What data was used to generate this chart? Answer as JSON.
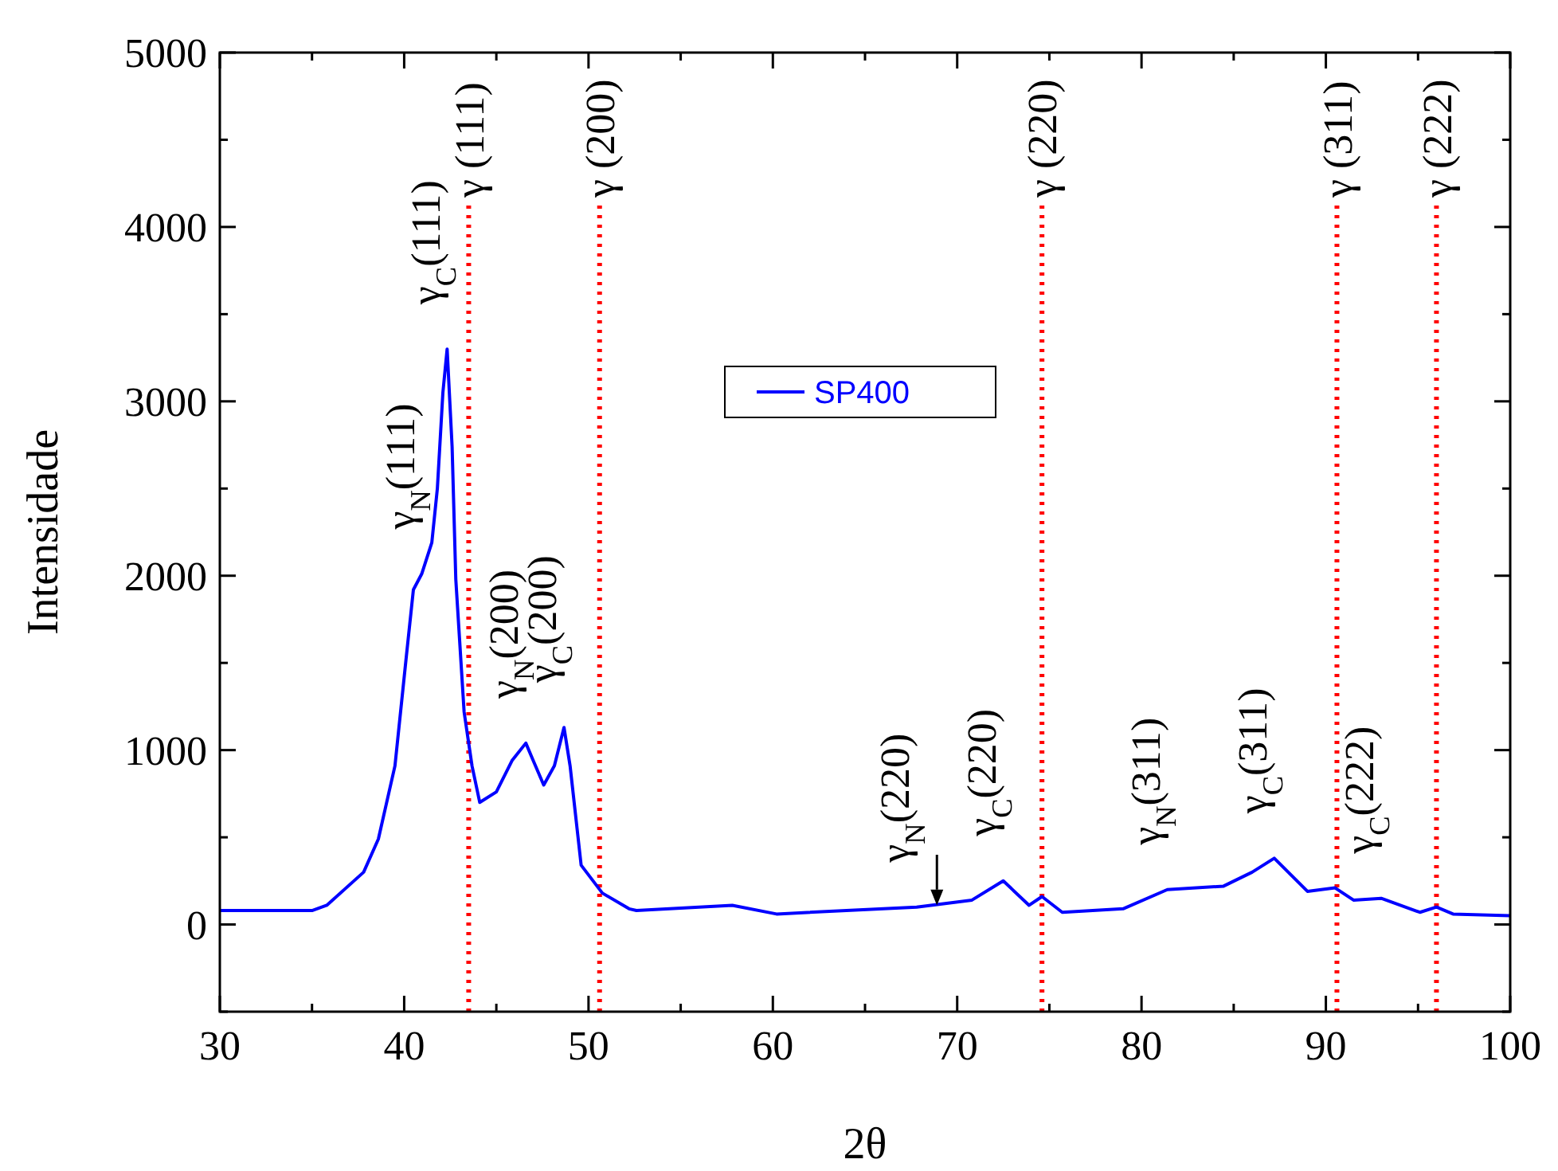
{
  "chart_data": {
    "type": "line",
    "xlabel": "2θ",
    "ylabel": "Intensidade",
    "xlim": [
      30,
      100
    ],
    "xticks": [
      30,
      {
        "value": 35,
        "label": null
      },
      40,
      {
        "value": 45,
        "label": null
      },
      50,
      {
        "value": 55,
        "label": null
      },
      60,
      {
        "value": 65,
        "label": null
      },
      70,
      {
        "value": 75,
        "label": null
      },
      80,
      {
        "value": 85,
        "label": null
      },
      90,
      {
        "value": 95,
        "label": null
      },
      100
    ],
    "ylim": [
      -500,
      5000
    ],
    "yticks": [
      {
        "value": -500,
        "label": null
      },
      0,
      {
        "value": 500,
        "label": null
      },
      1000,
      {
        "value": 1500,
        "label": null
      },
      2000,
      {
        "value": 2500,
        "label": null
      },
      3000,
      {
        "value": 3500,
        "label": null
      },
      4000,
      {
        "value": 4500,
        "label": null
      },
      5000
    ],
    "grid": false,
    "legend": "top",
    "marker": "none",
    "line_style": "solid",
    "series": [
      {
        "name": "SP400",
        "color": "#0000ff",
        "x": [
          30,
          35,
          35.8,
          37.8,
          38.6,
          39.5,
          40.1,
          40.5,
          40.95,
          41.5,
          41.8,
          42.1,
          42.33,
          42.6,
          42.8,
          43.25,
          43.68,
          44.1,
          45.0,
          45.85,
          46.6,
          47.0,
          47.57,
          48.15,
          48.67,
          49.0,
          49.6,
          50.75,
          52.2,
          52.6,
          57.8,
          60.2,
          67.8,
          70.8,
          72.5,
          73.9,
          74.6,
          75.7,
          79.0,
          81.4,
          84.45,
          86.0,
          87.2,
          89.0,
          90.5,
          91.5,
          93.0,
          95.1,
          96.0,
          96.9,
          100
        ],
        "values": [
          80,
          80,
          110,
          300,
          490,
          910,
          1520,
          1920,
          2010,
          2190,
          2500,
          3050,
          3300,
          2740,
          1980,
          1220,
          910,
          700,
          760,
          940,
          1040,
          940,
          800,
          910,
          1130,
          910,
          340,
          180,
          90,
          80,
          110,
          60,
          100,
          140,
          250,
          110,
          160,
          70,
          90,
          200,
          220,
          300,
          380,
          190,
          210,
          140,
          150,
          70,
          100,
          60,
          50
        ]
      }
    ],
    "ref_lines": [
      {
        "axis": "x",
        "value": 43.5,
        "label": "γ (111)",
        "color": "#ff0000",
        "line_style": "dotted"
      },
      {
        "axis": "x",
        "value": 50.6,
        "label": "γ (200)",
        "color": "#ff0000",
        "line_style": "dotted"
      },
      {
        "axis": "x",
        "value": 74.6,
        "label": "γ (220)",
        "color": "#ff0000",
        "line_style": "dotted"
      },
      {
        "axis": "x",
        "value": 90.6,
        "label": "γ (311)",
        "color": "#ff0000",
        "line_style": "dotted"
      },
      {
        "axis": "x",
        "value": 96.0,
        "label": "γ (222)",
        "color": "#ff0000",
        "line_style": "dotted"
      }
    ],
    "annotations": [
      {
        "text": "γ$_{N}$(111)",
        "x": 40.95,
        "y": 2010
      },
      {
        "text": "γ$_{C}$(111)",
        "x": 42.33,
        "y": 3300
      },
      {
        "text": "γ$_{N}$(200)",
        "x": 46.6,
        "y": 1040
      },
      {
        "text": "γ$_{C}$(200)",
        "x": 48.67,
        "y": 1130
      },
      {
        "text": "γ$_{N}$(220)",
        "x": 67.8,
        "y": 100
      },
      {
        "text": "γ$_{C}$(220)",
        "x": 72.5,
        "y": 250
      },
      {
        "text": "γ$_{N}$(311)",
        "x": 81.4,
        "y": 200
      },
      {
        "text": "γ$_{C}$(311)",
        "x": 87.2,
        "y": 380
      },
      {
        "text": "γ$_{C}$(222)",
        "x": 93.0,
        "y": 150
      }
    ]
  }
}
